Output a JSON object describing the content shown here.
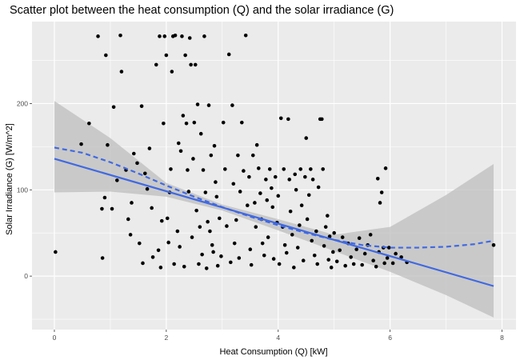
{
  "chart_data": {
    "type": "scatter",
    "title": "Scatter plot between the heat consumption (Q) and the solar irradiance (G)",
    "xlabel": "Heat Consumption (Q) [kW]",
    "ylabel": "Solar Irradiance (G) [W/m^2]",
    "xlim": [
      -0.4,
      8.25
    ],
    "ylim": [
      -62,
      295
    ],
    "x_ticks": [
      0,
      2,
      4,
      6,
      8
    ],
    "y_ticks": [
      0,
      100,
      200
    ],
    "grid": true,
    "colors": {
      "panel": "#ebebeb",
      "grid": "#ffffff",
      "points": "#000000",
      "fit": "#4169e1",
      "band": "#bebebe"
    },
    "linear_fit": {
      "x_range": [
        0,
        7.85
      ],
      "intercept": 136,
      "slope": -18.8
    },
    "linear_band": [
      {
        "x": 0,
        "lower": 97,
        "upper": 203
      },
      {
        "x": 1,
        "lower": 98,
        "upper": 160
      },
      {
        "x": 2,
        "lower": 92,
        "upper": 108
      },
      {
        "x": 3,
        "lower": 76,
        "upper": 83
      },
      {
        "x": 4,
        "lower": 53,
        "upper": 66
      },
      {
        "x": 5,
        "lower": 29,
        "upper": 48
      },
      {
        "x": 6,
        "lower": 5,
        "upper": 57
      },
      {
        "x": 7,
        "lower": -22,
        "upper": 94
      },
      {
        "x": 7.85,
        "lower": -48,
        "upper": 130
      }
    ],
    "smooth_fit": [
      [
        0,
        149
      ],
      [
        0.5,
        143
      ],
      [
        1,
        132
      ],
      [
        1.5,
        119
      ],
      [
        2,
        105
      ],
      [
        2.5,
        92
      ],
      [
        3,
        80
      ],
      [
        3.5,
        69
      ],
      [
        4,
        59
      ],
      [
        4.5,
        50
      ],
      [
        5,
        42
      ],
      [
        5.5,
        36
      ],
      [
        6,
        33
      ],
      [
        6.5,
        33
      ],
      [
        7,
        34
      ],
      [
        7.5,
        37
      ],
      [
        7.85,
        41
      ]
    ],
    "points": [
      [
        0.02,
        28
      ],
      [
        0.48,
        153
      ],
      [
        0.62,
        177
      ],
      [
        0.78,
        278
      ],
      [
        0.85,
        78
      ],
      [
        0.86,
        21
      ],
      [
        0.9,
        91
      ],
      [
        0.92,
        256
      ],
      [
        0.95,
        152
      ],
      [
        1.03,
        78
      ],
      [
        1.06,
        196
      ],
      [
        1.12,
        111
      ],
      [
        1.18,
        279
      ],
      [
        1.2,
        237
      ],
      [
        1.28,
        123
      ],
      [
        1.32,
        66
      ],
      [
        1.36,
        48
      ],
      [
        1.38,
        85
      ],
      [
        1.42,
        142
      ],
      [
        1.48,
        131
      ],
      [
        1.52,
        38
      ],
      [
        1.56,
        197
      ],
      [
        1.58,
        15
      ],
      [
        1.62,
        119
      ],
      [
        1.66,
        101
      ],
      [
        1.7,
        148
      ],
      [
        1.74,
        79
      ],
      [
        1.76,
        22
      ],
      [
        1.82,
        245
      ],
      [
        1.86,
        30
      ],
      [
        1.88,
        278
      ],
      [
        1.9,
        10
      ],
      [
        1.92,
        64
      ],
      [
        1.95,
        177
      ],
      [
        1.97,
        278
      ],
      [
        2.0,
        256
      ],
      [
        2.02,
        67
      ],
      [
        2.04,
        39
      ],
      [
        2.06,
        97
      ],
      [
        2.08,
        124
      ],
      [
        2.1,
        237
      ],
      [
        2.12,
        278
      ],
      [
        2.14,
        14
      ],
      [
        2.16,
        279
      ],
      [
        2.2,
        52
      ],
      [
        2.22,
        154
      ],
      [
        2.24,
        34
      ],
      [
        2.26,
        145
      ],
      [
        2.28,
        278
      ],
      [
        2.3,
        186
      ],
      [
        2.32,
        11
      ],
      [
        2.34,
        256
      ],
      [
        2.36,
        177
      ],
      [
        2.38,
        123
      ],
      [
        2.4,
        98
      ],
      [
        2.42,
        276
      ],
      [
        2.44,
        245
      ],
      [
        2.46,
        45
      ],
      [
        2.48,
        136
      ],
      [
        2.5,
        178
      ],
      [
        2.52,
        245
      ],
      [
        2.54,
        76
      ],
      [
        2.56,
        199
      ],
      [
        2.58,
        14
      ],
      [
        2.6,
        57
      ],
      [
        2.62,
        165
      ],
      [
        2.64,
        25
      ],
      [
        2.66,
        123
      ],
      [
        2.68,
        278
      ],
      [
        2.7,
        97
      ],
      [
        2.72,
        9
      ],
      [
        2.74,
        63
      ],
      [
        2.76,
        198
      ],
      [
        2.78,
        52
      ],
      [
        2.8,
        140
      ],
      [
        2.82,
        36
      ],
      [
        2.84,
        28
      ],
      [
        2.86,
        151
      ],
      [
        2.88,
        109
      ],
      [
        2.9,
        92
      ],
      [
        2.92,
        12
      ],
      [
        2.95,
        67
      ],
      [
        2.98,
        23
      ],
      [
        3.02,
        178
      ],
      [
        3.05,
        124
      ],
      [
        3.08,
        58
      ],
      [
        3.12,
        257
      ],
      [
        3.15,
        16
      ],
      [
        3.18,
        198
      ],
      [
        3.2,
        107
      ],
      [
        3.22,
        38
      ],
      [
        3.25,
        65
      ],
      [
        3.28,
        140
      ],
      [
        3.3,
        21
      ],
      [
        3.32,
        98
      ],
      [
        3.35,
        178
      ],
      [
        3.38,
        122
      ],
      [
        3.42,
        279
      ],
      [
        3.45,
        82
      ],
      [
        3.48,
        115
      ],
      [
        3.5,
        31
      ],
      [
        3.52,
        13
      ],
      [
        3.55,
        140
      ],
      [
        3.58,
        85
      ],
      [
        3.6,
        57
      ],
      [
        3.62,
        152
      ],
      [
        3.65,
        125
      ],
      [
        3.68,
        96
      ],
      [
        3.7,
        66
      ],
      [
        3.72,
        38
      ],
      [
        3.75,
        24
      ],
      [
        3.78,
        112
      ],
      [
        3.8,
        88
      ],
      [
        3.82,
        45
      ],
      [
        3.85,
        124
      ],
      [
        3.88,
        102
      ],
      [
        3.9,
        80
      ],
      [
        3.92,
        20
      ],
      [
        3.95,
        115
      ],
      [
        3.98,
        62
      ],
      [
        4.0,
        93
      ],
      [
        4.02,
        14
      ],
      [
        4.05,
        183
      ],
      [
        4.08,
        57
      ],
      [
        4.1,
        124
      ],
      [
        4.12,
        36
      ],
      [
        4.15,
        27
      ],
      [
        4.18,
        182
      ],
      [
        4.2,
        112
      ],
      [
        4.22,
        75
      ],
      [
        4.25,
        48
      ],
      [
        4.28,
        10
      ],
      [
        4.3,
        118
      ],
      [
        4.32,
        100
      ],
      [
        4.35,
        33
      ],
      [
        4.38,
        59
      ],
      [
        4.4,
        124
      ],
      [
        4.42,
        82
      ],
      [
        4.45,
        18
      ],
      [
        4.48,
        115
      ],
      [
        4.5,
        160
      ],
      [
        4.52,
        66
      ],
      [
        4.55,
        94
      ],
      [
        4.58,
        124
      ],
      [
        4.6,
        41
      ],
      [
        4.62,
        112
      ],
      [
        4.65,
        24
      ],
      [
        4.68,
        52
      ],
      [
        4.7,
        14
      ],
      [
        4.72,
        103
      ],
      [
        4.75,
        182
      ],
      [
        4.78,
        182
      ],
      [
        4.8,
        124
      ],
      [
        4.82,
        35
      ],
      [
        4.85,
        57
      ],
      [
        4.88,
        70
      ],
      [
        4.9,
        19
      ],
      [
        4.92,
        46
      ],
      [
        4.95,
        10
      ],
      [
        4.98,
        28
      ],
      [
        5.0,
        50
      ],
      [
        5.05,
        17
      ],
      [
        5.1,
        30
      ],
      [
        5.15,
        45
      ],
      [
        5.2,
        12
      ],
      [
        5.25,
        38
      ],
      [
        5.3,
        22
      ],
      [
        5.35,
        14
      ],
      [
        5.4,
        31
      ],
      [
        5.45,
        44
      ],
      [
        5.5,
        13
      ],
      [
        5.55,
        26
      ],
      [
        5.6,
        36
      ],
      [
        5.65,
        48
      ],
      [
        5.7,
        18
      ],
      [
        5.75,
        11
      ],
      [
        5.78,
        113
      ],
      [
        5.8,
        28
      ],
      [
        5.82,
        85
      ],
      [
        5.85,
        97
      ],
      [
        5.88,
        33
      ],
      [
        5.9,
        15
      ],
      [
        5.92,
        125
      ],
      [
        5.95,
        21
      ],
      [
        5.98,
        33
      ],
      [
        6.05,
        15
      ],
      [
        6.1,
        26
      ],
      [
        6.2,
        22
      ],
      [
        6.3,
        16
      ],
      [
        7.85,
        36
      ]
    ]
  }
}
